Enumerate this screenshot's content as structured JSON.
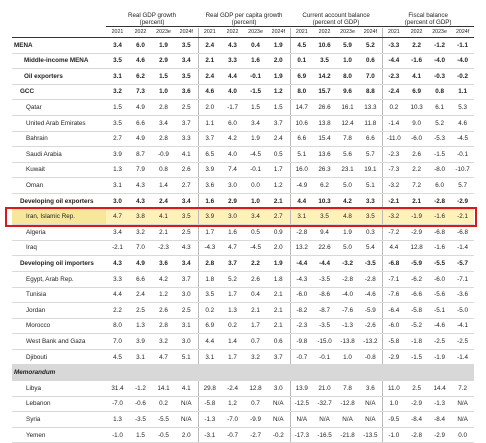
{
  "groups": [
    {
      "line1": "Real GDP growth",
      "line2": "(percent)"
    },
    {
      "line1": "Real GDP per capita growth",
      "line2": "(percent)"
    },
    {
      "line1": "Current account balance",
      "line2": "(percent of GDP)"
    },
    {
      "line1": "Fiscal balance",
      "line2": "(percent of GDP)"
    }
  ],
  "years": [
    "2021",
    "2022",
    "2023e",
    "2024f"
  ],
  "rows": [
    {
      "label": "MENA",
      "level": 0,
      "bold": true,
      "values": [
        "3.4",
        "6.0",
        "1.9",
        "3.5",
        "2.4",
        "4.3",
        "0.4",
        "1.9",
        "4.5",
        "10.6",
        "5.9",
        "5.2",
        "-3.3",
        "2.2",
        "-1.2",
        "-1.1"
      ]
    },
    {
      "label": "Middle-income MENA",
      "level": 1,
      "bold": true,
      "values": [
        "3.5",
        "4.6",
        "2.9",
        "3.4",
        "2.1",
        "3.3",
        "1.6",
        "2.0",
        "0.1",
        "3.5",
        "1.0",
        "0.6",
        "-4.4",
        "-1.6",
        "-4.0",
        "-4.0"
      ]
    },
    {
      "label": "Oil exporters",
      "level": 1,
      "bold": true,
      "values": [
        "3.1",
        "6.2",
        "1.5",
        "3.5",
        "2.4",
        "4.4",
        "-0.1",
        "1.9",
        "6.9",
        "14.2",
        "8.0",
        "7.0",
        "-2.3",
        "4.1",
        "-0.3",
        "-0.2"
      ]
    },
    {
      "label": "GCC",
      "level": 2,
      "bold": true,
      "values": [
        "3.2",
        "7.3",
        "1.0",
        "3.6",
        "4.6",
        "4.0",
        "-1.5",
        "1.2",
        "8.0",
        "15.7",
        "9.6",
        "8.8",
        "-2.4",
        "6.9",
        "0.8",
        "1.1"
      ]
    },
    {
      "label": "Qatar",
      "level": 3,
      "values": [
        "1.5",
        "4.9",
        "2.8",
        "2.5",
        "2.0",
        "-1.7",
        "1.5",
        "1.5",
        "14.7",
        "26.6",
        "16.1",
        "13.3",
        "0.2",
        "10.3",
        "6.1",
        "5.3"
      ]
    },
    {
      "label": "United Arab Emirates",
      "level": 3,
      "values": [
        "3.5",
        "6.6",
        "3.4",
        "3.7",
        "1.1",
        "6.0",
        "3.4",
        "3.7",
        "10.6",
        "13.8",
        "12.4",
        "11.8",
        "-1.4",
        "9.0",
        "5.2",
        "4.6"
      ]
    },
    {
      "label": "Bahrain",
      "level": 3,
      "values": [
        "2.7",
        "4.9",
        "2.8",
        "3.3",
        "3.7",
        "4.2",
        "1.9",
        "2.4",
        "6.6",
        "15.4",
        "7.8",
        "6.6",
        "-11.0",
        "-6.0",
        "-5.3",
        "-4.5"
      ]
    },
    {
      "label": "Saudi Arabia",
      "level": 3,
      "values": [
        "3.9",
        "8.7",
        "-0.9",
        "4.1",
        "6.5",
        "4.0",
        "-4.5",
        "0.5",
        "5.1",
        "13.6",
        "5.6",
        "5.7",
        "-2.3",
        "2.6",
        "-1.5",
        "-0.1"
      ]
    },
    {
      "label": "Kuwait",
      "level": 3,
      "values": [
        "1.3",
        "7.9",
        "0.8",
        "2.6",
        "3.9",
        "7.4",
        "-0.1",
        "1.7",
        "16.0",
        "26.3",
        "23.1",
        "19.1",
        "-7.3",
        "2.2",
        "-8.0",
        "-10.7"
      ]
    },
    {
      "label": "Oman",
      "level": 3,
      "values": [
        "3.1",
        "4.3",
        "1.4",
        "2.7",
        "3.6",
        "3.0",
        "0.0",
        "1.2",
        "-4.9",
        "6.2",
        "5.0",
        "5.1",
        "-3.2",
        "7.2",
        "6.0",
        "5.7"
      ]
    },
    {
      "label": "Developing oil exporters",
      "level": 2,
      "bold": true,
      "values": [
        "3.0",
        "4.3",
        "2.4",
        "3.4",
        "1.6",
        "2.9",
        "1.0",
        "2.1",
        "4.4",
        "10.3",
        "4.2",
        "3.3",
        "-2.1",
        "2.1",
        "-2.8",
        "-2.9"
      ]
    },
    {
      "label": "Iran, Islamic Rep.",
      "level": 3,
      "highlight": true,
      "values": [
        "4.7",
        "3.8",
        "4.1",
        "3.5",
        "3.9",
        "3.0",
        "3.4",
        "2.7",
        "3.1",
        "3.5",
        "4.8",
        "3.5",
        "-3.2",
        "-1.9",
        "-1.6",
        "-2.1"
      ]
    },
    {
      "label": "Algeria",
      "level": 3,
      "values": [
        "3.4",
        "3.2",
        "2.1",
        "2.5",
        "1.7",
        "1.6",
        "0.5",
        "0.9",
        "-2.8",
        "9.4",
        "1.9",
        "0.3",
        "-7.2",
        "-2.9",
        "-6.8",
        "-6.8"
      ]
    },
    {
      "label": "Iraq",
      "level": 3,
      "values": [
        "-2.1",
        "7.0",
        "-2.3",
        "4.3",
        "-4.3",
        "4.7",
        "-4.5",
        "2.0",
        "13.2",
        "22.6",
        "5.0",
        "5.4",
        "4.4",
        "12.8",
        "-1.6",
        "-1.4"
      ]
    },
    {
      "label": "Developing oil importers",
      "level": 2,
      "bold": true,
      "values": [
        "4.3",
        "4.9",
        "3.6",
        "3.4",
        "2.8",
        "3.7",
        "2.2",
        "1.9",
        "-4.4",
        "-4.4",
        "-3.2",
        "-3.5",
        "-6.8",
        "-5.9",
        "-5.5",
        "-5.7"
      ]
    },
    {
      "label": "Egypt, Arab Rep.",
      "level": 3,
      "values": [
        "3.3",
        "6.6",
        "4.2",
        "3.7",
        "1.8",
        "5.2",
        "2.6",
        "1.8",
        "-4.3",
        "-3.5",
        "-2.8",
        "-2.8",
        "-7.1",
        "-6.2",
        "-6.0",
        "-7.1"
      ]
    },
    {
      "label": "Tunisia",
      "level": 3,
      "values": [
        "4.4",
        "2.4",
        "1.2",
        "3.0",
        "3.5",
        "1.7",
        "0.4",
        "2.1",
        "-6.0",
        "-8.6",
        "-4.0",
        "-4.6",
        "-7.6",
        "-6.6",
        "-5.6",
        "-3.6"
      ]
    },
    {
      "label": "Jordan",
      "level": 3,
      "values": [
        "2.2",
        "2.5",
        "2.6",
        "2.5",
        "0.2",
        "1.3",
        "2.1",
        "2.1",
        "-8.2",
        "-8.7",
        "-7.6",
        "-5.9",
        "-6.4",
        "-5.8",
        "-5.1",
        "-5.0"
      ]
    },
    {
      "label": "Morocco",
      "level": 3,
      "values": [
        "8.0",
        "1.3",
        "2.8",
        "3.1",
        "6.9",
        "0.2",
        "1.7",
        "2.1",
        "-2.3",
        "-3.5",
        "-1.3",
        "-2.6",
        "-6.0",
        "-5.2",
        "-4.6",
        "-4.1"
      ]
    },
    {
      "label": "West Bank and Gaza",
      "level": 3,
      "values": [
        "7.0",
        "3.9",
        "3.2",
        "3.0",
        "4.4",
        "1.4",
        "0.7",
        "0.6",
        "-9.8",
        "-15.0",
        "-13.8",
        "-13.2",
        "-5.8",
        "-1.8",
        "-2.5",
        "-2.5"
      ]
    },
    {
      "label": "Djibouti",
      "level": 3,
      "values": [
        "4.5",
        "3.1",
        "4.7",
        "5.1",
        "3.1",
        "1.7",
        "3.2",
        "3.7",
        "-0.7",
        "-0.1",
        "1.0",
        "-0.8",
        "-2.9",
        "-1.5",
        "-1.9",
        "-1.4"
      ]
    },
    {
      "label": "Memorandum",
      "level": 0,
      "section": true,
      "values": []
    },
    {
      "label": "Libya",
      "level": 3,
      "values": [
        "31.4",
        "-1.2",
        "14.1",
        "4.1",
        "29.8",
        "-2.4",
        "12.8",
        "3.0",
        "13.9",
        "21.0",
        "7.8",
        "3.6",
        "11.0",
        "2.5",
        "14.4",
        "7.2"
      ]
    },
    {
      "label": "Lebanon",
      "level": 3,
      "values": [
        "-7.0",
        "-0.6",
        "0.2",
        "N/A",
        "-5.8",
        "1.2",
        "0.7",
        "N/A",
        "-12.5",
        "-32.7",
        "-12.8",
        "N/A",
        "1.0",
        "-2.9",
        "-1.3",
        "N/A"
      ]
    },
    {
      "label": "Syria",
      "level": 3,
      "values": [
        "1.3",
        "-3.5",
        "-5.5",
        "N/A",
        "-1.3",
        "-7.0",
        "-9.9",
        "N/A",
        "N/A",
        "N/A",
        "N/A",
        "N/A",
        "-9.5",
        "-8.4",
        "-8.4",
        "N/A"
      ]
    },
    {
      "label": "Yemen",
      "level": 3,
      "values": [
        "-1.0",
        "1.5",
        "-0.5",
        "2.0",
        "-3.1",
        "-0.7",
        "-2.7",
        "-0.2",
        "-17.3",
        "-16.5",
        "-21.8",
        "-13.5",
        "-1.0",
        "-2.8",
        "-2.9",
        "0.0"
      ]
    }
  ]
}
